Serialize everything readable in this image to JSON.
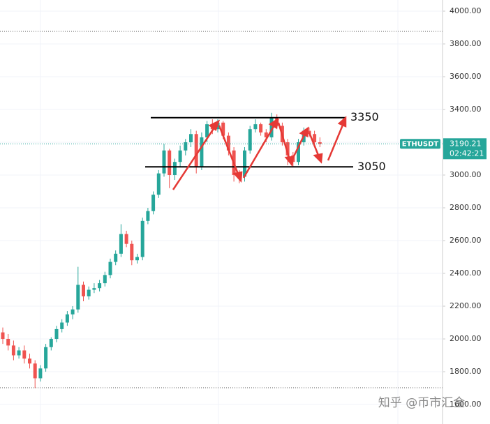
{
  "chart_data": {
    "type": "candlestick",
    "symbol": "ETHUSDT",
    "countdown": "02:42:21",
    "watermark": "知乎 @币市汇金",
    "ylim": [
      1481,
      4068
    ],
    "yticks": [
      {
        "value": 1600,
        "label": "1600.00"
      },
      {
        "value": 1800,
        "label": "1800.00"
      },
      {
        "value": 2000,
        "label": "2000.00"
      },
      {
        "value": 2200,
        "label": "2200.00"
      },
      {
        "value": 2400,
        "label": "2400.00"
      },
      {
        "value": 2600,
        "label": "2600.00"
      },
      {
        "value": 2800,
        "label": "2800.00"
      },
      {
        "value": 3000,
        "label": "3000.00"
      },
      {
        "value": 3200,
        "label": "3200.00"
      },
      {
        "value": 3400,
        "label": "3400.00"
      },
      {
        "value": 3600,
        "label": "3600.00"
      },
      {
        "value": 3800,
        "label": "3800.00"
      },
      {
        "value": 4000,
        "label": "4000.00"
      }
    ],
    "levels": [
      3350,
      3050
    ],
    "up_color": "#26a69a",
    "down_color": "#ef5350",
    "open": [
      2040,
      2000,
      1960,
      1900,
      1930,
      1880,
      1850,
      1760,
      1820,
      1950,
      2000,
      2060,
      2100,
      2150,
      2180,
      2330,
      2260,
      2300,
      2310,
      2340,
      2390,
      2470,
      2520,
      2640,
      2580,
      2480,
      2500,
      2720,
      2780,
      2880,
      3010,
      3150,
      3000,
      3080,
      3150,
      3200,
      3250,
      3050,
      3230,
      3310,
      3280,
      3320,
      3240,
      3150,
      3000,
      2990,
      3150,
      3280,
      3310,
      3260,
      3230,
      3350,
      3300,
      3200,
      3120,
      3080,
      3200,
      3270,
      3250,
      3200
    ],
    "high": [
      2070,
      2030,
      1990,
      1950,
      1960,
      1910,
      1870,
      1840,
      1970,
      2010,
      2080,
      2120,
      2170,
      2200,
      2440,
      2350,
      2320,
      2340,
      2360,
      2410,
      2490,
      2540,
      2700,
      2660,
      2600,
      2520,
      2740,
      2800,
      2900,
      3030,
      3190,
      3160,
      3100,
      3180,
      3220,
      3280,
      3270,
      3260,
      3330,
      3340,
      3340,
      3330,
      3260,
      3170,
      3030,
      3170,
      3300,
      3340,
      3320,
      3280,
      3380,
      3370,
      3320,
      3220,
      3140,
      3220,
      3290,
      3290,
      3270,
      3230
    ],
    "low": [
      1970,
      1930,
      1870,
      1880,
      1850,
      1820,
      1700,
      1740,
      1800,
      1930,
      1980,
      2040,
      2080,
      2120,
      2160,
      2230,
      2240,
      2280,
      2290,
      2320,
      2370,
      2450,
      2500,
      2560,
      2450,
      2460,
      2480,
      2700,
      2760,
      2860,
      2990,
      2920,
      2970,
      3050,
      3120,
      3170,
      3010,
      3030,
      3200,
      3250,
      3260,
      3220,
      3120,
      2960,
      2950,
      2960,
      3130,
      3260,
      3240,
      3200,
      3210,
      3280,
      3180,
      3060,
      3050,
      3060,
      3180,
      3230,
      3180,
      3170
    ],
    "close": [
      2000,
      1960,
      1900,
      1930,
      1880,
      1850,
      1760,
      1820,
      1950,
      2000,
      2060,
      2100,
      2150,
      2180,
      2330,
      2260,
      2300,
      2310,
      2340,
      2390,
      2470,
      2520,
      2640,
      2580,
      2480,
      2500,
      2720,
      2780,
      2880,
      3010,
      3150,
      3000,
      3080,
      3150,
      3200,
      3250,
      3050,
      3230,
      3310,
      3280,
      3320,
      3240,
      3150,
      3000,
      2990,
      3150,
      3280,
      3310,
      3260,
      3230,
      3350,
      3300,
      3200,
      3120,
      3080,
      3200,
      3270,
      3250,
      3200,
      3190.21
    ]
  }
}
